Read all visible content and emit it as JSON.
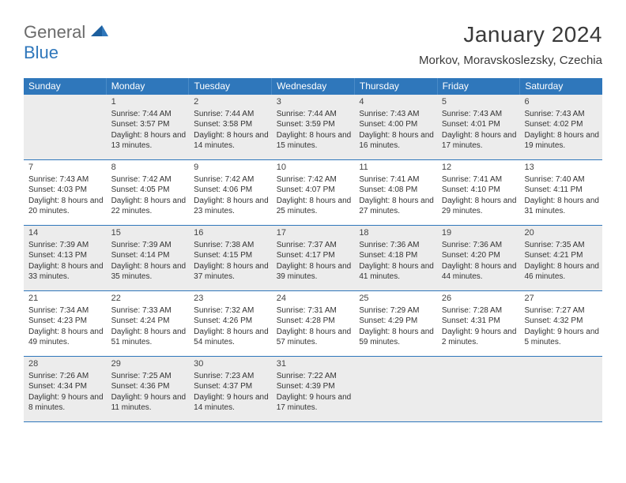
{
  "brand": {
    "part1": "General",
    "part2": "Blue",
    "colors": {
      "gray": "#6b6b6b",
      "blue": "#2f77bb"
    }
  },
  "title": "January 2024",
  "location": "Morkov, Moravskoslezsky, Czechia",
  "weekdays": [
    "Sunday",
    "Monday",
    "Tuesday",
    "Wednesday",
    "Thursday",
    "Friday",
    "Saturday"
  ],
  "header_bg": "#2f77bb",
  "shade_bg": "#ececec",
  "days": [
    {
      "n": "",
      "sunrise": "",
      "sunset": "",
      "daylight": ""
    },
    {
      "n": "1",
      "sunrise": "Sunrise: 7:44 AM",
      "sunset": "Sunset: 3:57 PM",
      "daylight": "Daylight: 8 hours and 13 minutes."
    },
    {
      "n": "2",
      "sunrise": "Sunrise: 7:44 AM",
      "sunset": "Sunset: 3:58 PM",
      "daylight": "Daylight: 8 hours and 14 minutes."
    },
    {
      "n": "3",
      "sunrise": "Sunrise: 7:44 AM",
      "sunset": "Sunset: 3:59 PM",
      "daylight": "Daylight: 8 hours and 15 minutes."
    },
    {
      "n": "4",
      "sunrise": "Sunrise: 7:43 AM",
      "sunset": "Sunset: 4:00 PM",
      "daylight": "Daylight: 8 hours and 16 minutes."
    },
    {
      "n": "5",
      "sunrise": "Sunrise: 7:43 AM",
      "sunset": "Sunset: 4:01 PM",
      "daylight": "Daylight: 8 hours and 17 minutes."
    },
    {
      "n": "6",
      "sunrise": "Sunrise: 7:43 AM",
      "sunset": "Sunset: 4:02 PM",
      "daylight": "Daylight: 8 hours and 19 minutes."
    },
    {
      "n": "7",
      "sunrise": "Sunrise: 7:43 AM",
      "sunset": "Sunset: 4:03 PM",
      "daylight": "Daylight: 8 hours and 20 minutes."
    },
    {
      "n": "8",
      "sunrise": "Sunrise: 7:42 AM",
      "sunset": "Sunset: 4:05 PM",
      "daylight": "Daylight: 8 hours and 22 minutes."
    },
    {
      "n": "9",
      "sunrise": "Sunrise: 7:42 AM",
      "sunset": "Sunset: 4:06 PM",
      "daylight": "Daylight: 8 hours and 23 minutes."
    },
    {
      "n": "10",
      "sunrise": "Sunrise: 7:42 AM",
      "sunset": "Sunset: 4:07 PM",
      "daylight": "Daylight: 8 hours and 25 minutes."
    },
    {
      "n": "11",
      "sunrise": "Sunrise: 7:41 AM",
      "sunset": "Sunset: 4:08 PM",
      "daylight": "Daylight: 8 hours and 27 minutes."
    },
    {
      "n": "12",
      "sunrise": "Sunrise: 7:41 AM",
      "sunset": "Sunset: 4:10 PM",
      "daylight": "Daylight: 8 hours and 29 minutes."
    },
    {
      "n": "13",
      "sunrise": "Sunrise: 7:40 AM",
      "sunset": "Sunset: 4:11 PM",
      "daylight": "Daylight: 8 hours and 31 minutes."
    },
    {
      "n": "14",
      "sunrise": "Sunrise: 7:39 AM",
      "sunset": "Sunset: 4:13 PM",
      "daylight": "Daylight: 8 hours and 33 minutes."
    },
    {
      "n": "15",
      "sunrise": "Sunrise: 7:39 AM",
      "sunset": "Sunset: 4:14 PM",
      "daylight": "Daylight: 8 hours and 35 minutes."
    },
    {
      "n": "16",
      "sunrise": "Sunrise: 7:38 AM",
      "sunset": "Sunset: 4:15 PM",
      "daylight": "Daylight: 8 hours and 37 minutes."
    },
    {
      "n": "17",
      "sunrise": "Sunrise: 7:37 AM",
      "sunset": "Sunset: 4:17 PM",
      "daylight": "Daylight: 8 hours and 39 minutes."
    },
    {
      "n": "18",
      "sunrise": "Sunrise: 7:36 AM",
      "sunset": "Sunset: 4:18 PM",
      "daylight": "Daylight: 8 hours and 41 minutes."
    },
    {
      "n": "19",
      "sunrise": "Sunrise: 7:36 AM",
      "sunset": "Sunset: 4:20 PM",
      "daylight": "Daylight: 8 hours and 44 minutes."
    },
    {
      "n": "20",
      "sunrise": "Sunrise: 7:35 AM",
      "sunset": "Sunset: 4:21 PM",
      "daylight": "Daylight: 8 hours and 46 minutes."
    },
    {
      "n": "21",
      "sunrise": "Sunrise: 7:34 AM",
      "sunset": "Sunset: 4:23 PM",
      "daylight": "Daylight: 8 hours and 49 minutes."
    },
    {
      "n": "22",
      "sunrise": "Sunrise: 7:33 AM",
      "sunset": "Sunset: 4:24 PM",
      "daylight": "Daylight: 8 hours and 51 minutes."
    },
    {
      "n": "23",
      "sunrise": "Sunrise: 7:32 AM",
      "sunset": "Sunset: 4:26 PM",
      "daylight": "Daylight: 8 hours and 54 minutes."
    },
    {
      "n": "24",
      "sunrise": "Sunrise: 7:31 AM",
      "sunset": "Sunset: 4:28 PM",
      "daylight": "Daylight: 8 hours and 57 minutes."
    },
    {
      "n": "25",
      "sunrise": "Sunrise: 7:29 AM",
      "sunset": "Sunset: 4:29 PM",
      "daylight": "Daylight: 8 hours and 59 minutes."
    },
    {
      "n": "26",
      "sunrise": "Sunrise: 7:28 AM",
      "sunset": "Sunset: 4:31 PM",
      "daylight": "Daylight: 9 hours and 2 minutes."
    },
    {
      "n": "27",
      "sunrise": "Sunrise: 7:27 AM",
      "sunset": "Sunset: 4:32 PM",
      "daylight": "Daylight: 9 hours and 5 minutes."
    },
    {
      "n": "28",
      "sunrise": "Sunrise: 7:26 AM",
      "sunset": "Sunset: 4:34 PM",
      "daylight": "Daylight: 9 hours and 8 minutes."
    },
    {
      "n": "29",
      "sunrise": "Sunrise: 7:25 AM",
      "sunset": "Sunset: 4:36 PM",
      "daylight": "Daylight: 9 hours and 11 minutes."
    },
    {
      "n": "30",
      "sunrise": "Sunrise: 7:23 AM",
      "sunset": "Sunset: 4:37 PM",
      "daylight": "Daylight: 9 hours and 14 minutes."
    },
    {
      "n": "31",
      "sunrise": "Sunrise: 7:22 AM",
      "sunset": "Sunset: 4:39 PM",
      "daylight": "Daylight: 9 hours and 17 minutes."
    },
    {
      "n": "",
      "sunrise": "",
      "sunset": "",
      "daylight": ""
    },
    {
      "n": "",
      "sunrise": "",
      "sunset": "",
      "daylight": ""
    },
    {
      "n": "",
      "sunrise": "",
      "sunset": "",
      "daylight": ""
    }
  ],
  "shaded_rows": [
    0,
    2,
    4
  ]
}
